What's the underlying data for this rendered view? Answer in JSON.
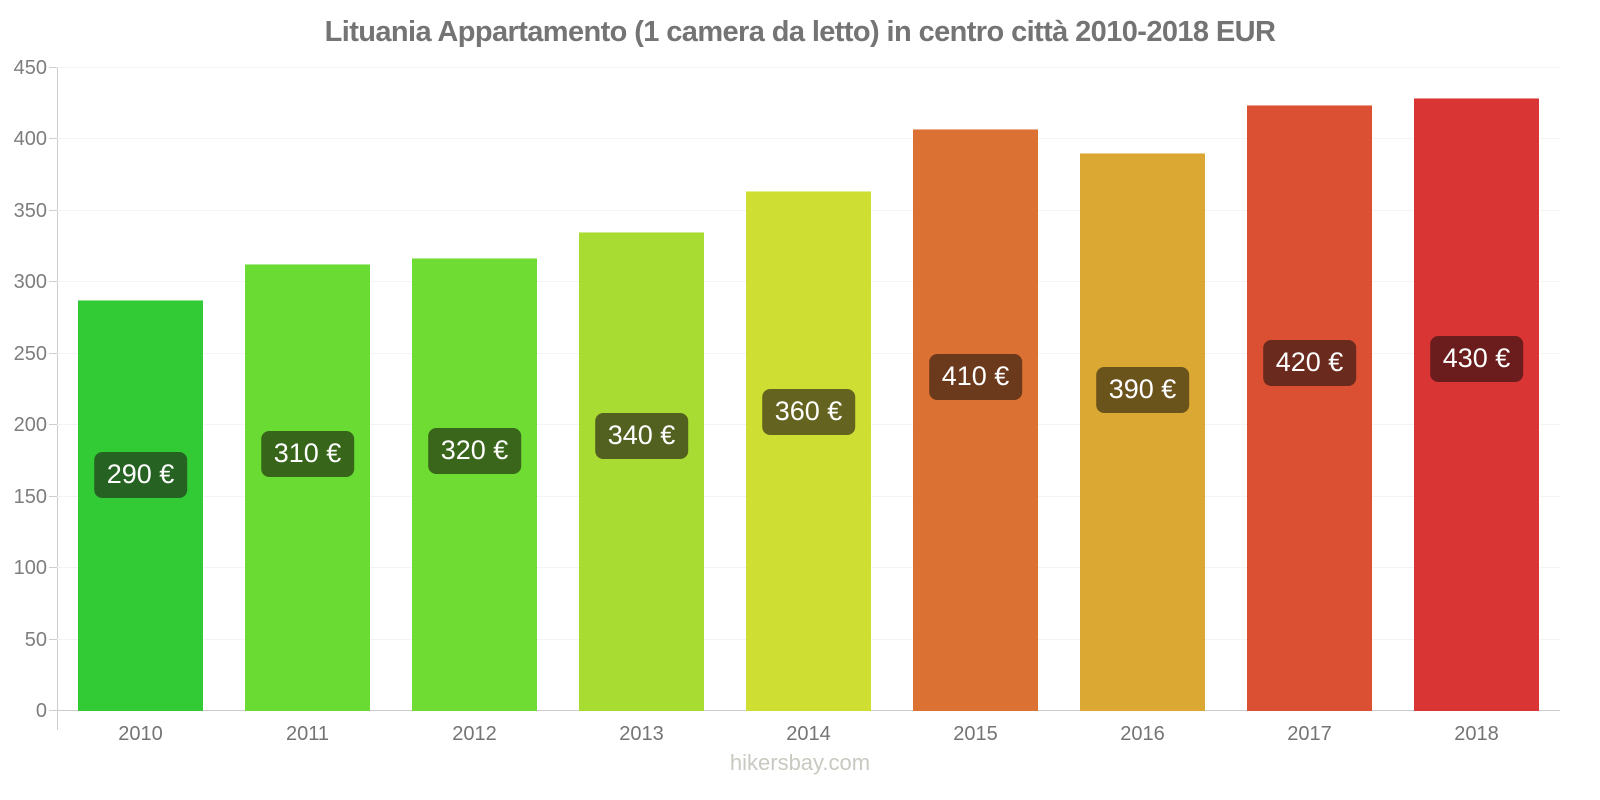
{
  "title": "Lituania Appartamento (1 camera da letto) in centro città 2010-2018 EUR",
  "watermark": "hikersbay.com",
  "chart_data": {
    "type": "bar",
    "title": "Lituania Appartamento (1 camera da letto) in centro città 2010-2018 EUR",
    "categories": [
      "2010",
      "2011",
      "2012",
      "2013",
      "2014",
      "2015",
      "2016",
      "2017",
      "2018"
    ],
    "values": [
      287.5,
      312.5,
      317,
      335,
      364,
      407,
      390.5,
      424,
      429
    ],
    "bar_labels": [
      "290 €",
      "310 €",
      "320 €",
      "340 €",
      "360 €",
      "410 €",
      "390 €",
      "420 €",
      "430 €"
    ],
    "bar_colors": [
      "#33CB35",
      "#69DB33",
      "#6FDC33",
      "#A9DC33",
      "#CEDE33",
      "#DB7233",
      "#DBA833",
      "#DB4F33",
      "#D93534"
    ],
    "badge_colors": [
      "#266323",
      "#37661A",
      "#39661A",
      "#52611F",
      "#646420",
      "#6B3A1C",
      "#6B531C",
      "#6B2A1E",
      "#6B1D1D"
    ],
    "ylim": [
      0,
      450
    ],
    "yticks": [
      0,
      50,
      100,
      150,
      200,
      250,
      300,
      350,
      400,
      450
    ],
    "xlabel": "",
    "ylabel": "",
    "grid": true,
    "legend": false,
    "unit": "EUR"
  },
  "style": {
    "title_color": "#747474",
    "axis_line_color": "#cccccc",
    "grid_color": "#f3f3f3",
    "tick_label_color": "#7d7d7d",
    "x_label_color": "#747474",
    "badge_text_color": "#ffffff",
    "watermark_color": "#c9c9c1",
    "background": "#ffffff"
  }
}
